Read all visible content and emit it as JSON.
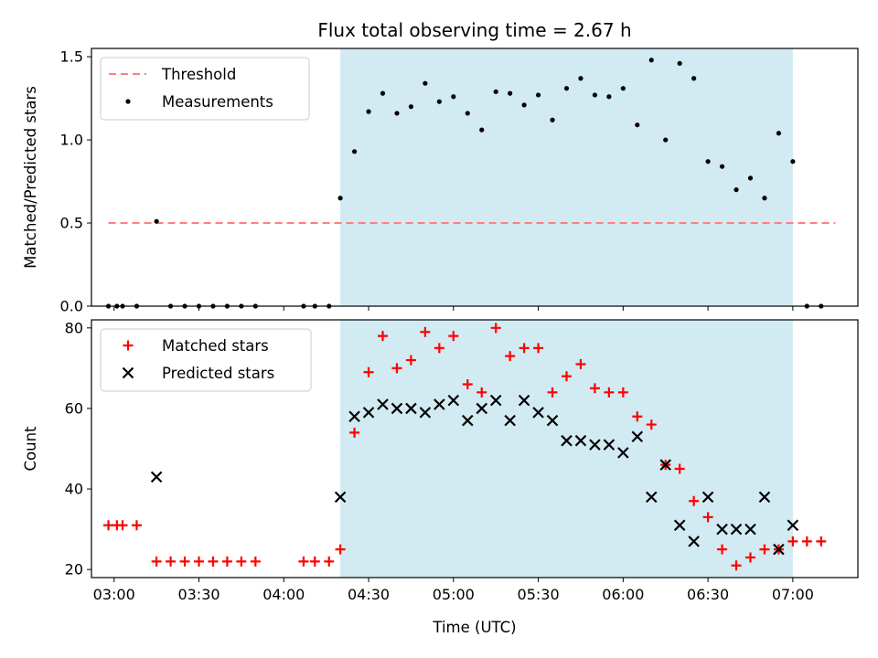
{
  "chart_data": {
    "title": "Flux total observing time = 2.67 h",
    "xlabel": "Time (UTC)",
    "x_ticks": [
      "03:00",
      "03:30",
      "04:00",
      "04:30",
      "05:00",
      "05:30",
      "06:00",
      "06:30",
      "07:00"
    ],
    "x_range": [
      "02:52",
      "07:23"
    ],
    "observing_window": {
      "start": "04:20",
      "end": "07:00",
      "color": "#add8e6"
    },
    "panels": [
      {
        "type": "scatter",
        "ylabel": "Matched/Predicted stars",
        "ylim": [
          0,
          1.55
        ],
        "y_ticks": [
          "0.0",
          "0.5",
          "1.0",
          "1.5"
        ],
        "legend_position": "top-left",
        "threshold": {
          "name": "Threshold",
          "value": 0.5,
          "from": "02:58",
          "to": "07:15",
          "color": "#ff7f7f",
          "style": "dashed"
        },
        "series": [
          {
            "name": "Measurements",
            "marker": "dot",
            "color": "#000000",
            "points": [
              [
                "02:58",
                0.0
              ],
              [
                "03:01",
                0.0
              ],
              [
                "03:03",
                0.0
              ],
              [
                "03:08",
                0.0
              ],
              [
                "03:15",
                0.51
              ],
              [
                "03:20",
                0.0
              ],
              [
                "03:25",
                0.0
              ],
              [
                "03:30",
                0.0
              ],
              [
                "03:35",
                0.0
              ],
              [
                "03:40",
                0.0
              ],
              [
                "03:45",
                0.0
              ],
              [
                "03:50",
                0.0
              ],
              [
                "04:07",
                0.0
              ],
              [
                "04:11",
                0.0
              ],
              [
                "04:16",
                0.0
              ],
              [
                "04:20",
                0.65
              ],
              [
                "04:25",
                0.93
              ],
              [
                "04:30",
                1.17
              ],
              [
                "04:35",
                1.28
              ],
              [
                "04:40",
                1.16
              ],
              [
                "04:45",
                1.2
              ],
              [
                "04:50",
                1.34
              ],
              [
                "04:55",
                1.23
              ],
              [
                "05:00",
                1.26
              ],
              [
                "05:05",
                1.16
              ],
              [
                "05:10",
                1.06
              ],
              [
                "05:15",
                1.29
              ],
              [
                "05:20",
                1.28
              ],
              [
                "05:25",
                1.21
              ],
              [
                "05:30",
                1.27
              ],
              [
                "05:35",
                1.12
              ],
              [
                "05:40",
                1.31
              ],
              [
                "05:45",
                1.37
              ],
              [
                "05:50",
                1.27
              ],
              [
                "05:55",
                1.26
              ],
              [
                "06:00",
                1.31
              ],
              [
                "06:05",
                1.09
              ],
              [
                "06:10",
                1.48
              ],
              [
                "06:15",
                1.0
              ],
              [
                "06:20",
                1.46
              ],
              [
                "06:25",
                1.37
              ],
              [
                "06:30",
                0.87
              ],
              [
                "06:35",
                0.84
              ],
              [
                "06:40",
                0.7
              ],
              [
                "06:45",
                0.77
              ],
              [
                "06:50",
                0.65
              ],
              [
                "06:55",
                1.04
              ],
              [
                "07:00",
                0.87
              ],
              [
                "07:05",
                0.0
              ],
              [
                "07:10",
                0.0
              ]
            ]
          }
        ]
      },
      {
        "type": "scatter",
        "ylabel": "Count",
        "ylim": [
          18,
          82
        ],
        "y_ticks": [
          "20",
          "40",
          "60",
          "80"
        ],
        "legend_position": "top-left",
        "series": [
          {
            "name": "Matched stars",
            "marker": "plus",
            "color": "#ff0000",
            "points": [
              [
                "02:58",
                31
              ],
              [
                "03:01",
                31
              ],
              [
                "03:03",
                31
              ],
              [
                "03:08",
                31
              ],
              [
                "03:15",
                22
              ],
              [
                "03:20",
                22
              ],
              [
                "03:25",
                22
              ],
              [
                "03:30",
                22
              ],
              [
                "03:35",
                22
              ],
              [
                "03:40",
                22
              ],
              [
                "03:45",
                22
              ],
              [
                "03:50",
                22
              ],
              [
                "04:07",
                22
              ],
              [
                "04:11",
                22
              ],
              [
                "04:16",
                22
              ],
              [
                "04:20",
                25
              ],
              [
                "04:25",
                54
              ],
              [
                "04:30",
                69
              ],
              [
                "04:35",
                78
              ],
              [
                "04:40",
                70
              ],
              [
                "04:45",
                72
              ],
              [
                "04:50",
                79
              ],
              [
                "04:55",
                75
              ],
              [
                "05:00",
                78
              ],
              [
                "05:05",
                66
              ],
              [
                "05:10",
                64
              ],
              [
                "05:15",
                80
              ],
              [
                "05:20",
                73
              ],
              [
                "05:25",
                75
              ],
              [
                "05:30",
                75
              ],
              [
                "05:35",
                64
              ],
              [
                "05:40",
                68
              ],
              [
                "05:45",
                71
              ],
              [
                "05:50",
                65
              ],
              [
                "05:55",
                64
              ],
              [
                "06:00",
                64
              ],
              [
                "06:05",
                58
              ],
              [
                "06:10",
                56
              ],
              [
                "06:15",
                46
              ],
              [
                "06:20",
                45
              ],
              [
                "06:25",
                37
              ],
              [
                "06:30",
                33
              ],
              [
                "06:35",
                25
              ],
              [
                "06:40",
                21
              ],
              [
                "06:45",
                23
              ],
              [
                "06:50",
                25
              ],
              [
                "06:55",
                25
              ],
              [
                "07:00",
                27
              ],
              [
                "07:05",
                27
              ],
              [
                "07:10",
                27
              ]
            ]
          },
          {
            "name": "Predicted stars",
            "marker": "x",
            "color": "#000000",
            "points": [
              [
                "03:15",
                43
              ],
              [
                "04:20",
                38
              ],
              [
                "04:25",
                58
              ],
              [
                "04:30",
                59
              ],
              [
                "04:35",
                61
              ],
              [
                "04:40",
                60
              ],
              [
                "04:45",
                60
              ],
              [
                "04:50",
                59
              ],
              [
                "04:55",
                61
              ],
              [
                "05:00",
                62
              ],
              [
                "05:05",
                57
              ],
              [
                "05:10",
                60
              ],
              [
                "05:15",
                62
              ],
              [
                "05:20",
                57
              ],
              [
                "05:25",
                62
              ],
              [
                "05:30",
                59
              ],
              [
                "05:35",
                57
              ],
              [
                "05:40",
                52
              ],
              [
                "05:45",
                52
              ],
              [
                "05:50",
                51
              ],
              [
                "05:55",
                51
              ],
              [
                "06:00",
                49
              ],
              [
                "06:05",
                53
              ],
              [
                "06:10",
                38
              ],
              [
                "06:15",
                46
              ],
              [
                "06:20",
                31
              ],
              [
                "06:25",
                27
              ],
              [
                "06:30",
                38
              ],
              [
                "06:35",
                30
              ],
              [
                "06:40",
                30
              ],
              [
                "06:45",
                30
              ],
              [
                "06:50",
                38
              ],
              [
                "06:55",
                25
              ],
              [
                "07:00",
                31
              ]
            ]
          }
        ]
      }
    ]
  }
}
